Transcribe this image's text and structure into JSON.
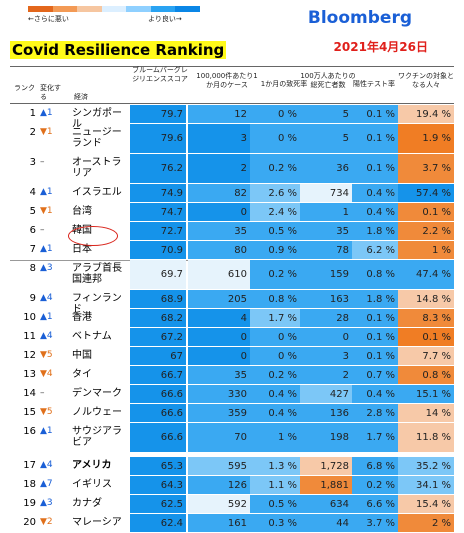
{
  "header": {
    "worse_label": "←さらに悪い",
    "better_label": "より良い→",
    "brand": "Bloomberg",
    "date": "2021年4月26日",
    "title": "Covid Resilience Ranking"
  },
  "columns": {
    "rank": "ランク",
    "change": "変化する",
    "economy": "経済",
    "score": "ブルームバーグレジリエンススコア",
    "cases": "100,000件あたり1か月のケース",
    "fatality": "1か月の致死率",
    "deaths": "100万人あたりの総死亡者数",
    "positive": "陽性テスト率",
    "vaccine": "ワクチンの対象となる人々"
  },
  "colors": {
    "legend": [
      "#e3671c",
      "#f39a55",
      "#f6c6a0",
      "#dcefff",
      "#8fd0ff",
      "#2aa3f2",
      "#0a86e6"
    ],
    "blue_strong": "#1593ea",
    "blue_mid": "#3aa9f2",
    "blue_light": "#7cc7f7",
    "pale": "#e6f3fc",
    "peach": "#f7c9a8",
    "orange": "#f08a3a",
    "orange_strong": "#f07d24"
  },
  "rows": [
    {
      "rank": "1",
      "dir": "up",
      "change": "▲1",
      "name": "シンガポール",
      "score": "79.7",
      "cases": "12",
      "fatality": "0 %",
      "deaths": "5",
      "positive": "0.1 %",
      "vaccine": "19.4 %"
    },
    {
      "rank": "2",
      "dir": "down",
      "change": "▼1",
      "name": "ニュージーランド",
      "score": "79.6",
      "cases": "3",
      "fatality": "0 %",
      "deaths": "5",
      "positive": "0.1 %",
      "vaccine": "1.9 %"
    },
    {
      "rank": "3",
      "dir": "flat",
      "change": "–",
      "name": "オーストラリア",
      "score": "76.2",
      "cases": "2",
      "fatality": "0.2 %",
      "deaths": "36",
      "positive": "0.1 %",
      "vaccine": "3.7 %"
    },
    {
      "rank": "4",
      "dir": "up",
      "change": "▲1",
      "name": "イスラエル",
      "score": "74.9",
      "cases": "82",
      "fatality": "2.6 %",
      "deaths": "734",
      "positive": "0.4 %",
      "vaccine": "57.4 %"
    },
    {
      "rank": "5",
      "dir": "down",
      "change": "▼1",
      "name": "台湾",
      "score": "74.7",
      "cases": "0",
      "fatality": "2.4 %",
      "deaths": "1",
      "positive": "0.4 %",
      "vaccine": "0.1 %"
    },
    {
      "rank": "6",
      "dir": "flat",
      "change": "–",
      "name": "韓国",
      "score": "72.7",
      "cases": "35",
      "fatality": "0.5 %",
      "deaths": "35",
      "positive": "1.8 %",
      "vaccine": "2.2 %"
    },
    {
      "rank": "7",
      "dir": "up",
      "change": "▲1",
      "name": "日本",
      "score": "70.9",
      "cases": "80",
      "fatality": "0.9 %",
      "deaths": "78",
      "positive": "6.2 %",
      "vaccine": "1 %"
    },
    {
      "rank": "8",
      "dir": "up",
      "change": "▲3",
      "name": "アラブ首長国連邦",
      "score": "69.7",
      "cases": "610",
      "fatality": "0.2 %",
      "deaths": "159",
      "positive": "0.8 %",
      "vaccine": "47.4 %"
    },
    {
      "rank": "9",
      "dir": "up",
      "change": "▲4",
      "name": "フィンランド",
      "score": "68.9",
      "cases": "205",
      "fatality": "0.8 %",
      "deaths": "163",
      "positive": "1.8 %",
      "vaccine": "14.8 %"
    },
    {
      "rank": "10",
      "dir": "up",
      "change": "▲1",
      "name": "香港",
      "score": "68.2",
      "cases": "4",
      "fatality": "1.7 %",
      "deaths": "28",
      "positive": "0.1 %",
      "vaccine": "8.3 %"
    },
    {
      "rank": "11",
      "dir": "up",
      "change": "▲4",
      "name": "ベトナム",
      "score": "67.2",
      "cases": "0",
      "fatality": "0 %",
      "deaths": "0",
      "positive": "0.1 %",
      "vaccine": "0.1 %"
    },
    {
      "rank": "12",
      "dir": "down",
      "change": "▼5",
      "name": "中国",
      "score": "67",
      "cases": "0",
      "fatality": "0 %",
      "deaths": "3",
      "positive": "0.1 %",
      "vaccine": "7.7 %"
    },
    {
      "rank": "13",
      "dir": "down",
      "change": "▼4",
      "name": "タイ",
      "score": "66.7",
      "cases": "35",
      "fatality": "0.2 %",
      "deaths": "2",
      "positive": "0.7 %",
      "vaccine": "0.8 %"
    },
    {
      "rank": "14",
      "dir": "flat",
      "change": "–",
      "name": "デンマーク",
      "score": "66.6",
      "cases": "330",
      "fatality": "0.4 %",
      "deaths": "427",
      "positive": "0.4 %",
      "vaccine": "15.1 %"
    },
    {
      "rank": "15",
      "dir": "down",
      "change": "▼5",
      "name": "ノルウェー",
      "score": "66.6",
      "cases": "359",
      "fatality": "0.4 %",
      "deaths": "136",
      "positive": "2.8 %",
      "vaccine": "14 %"
    },
    {
      "rank": "16",
      "dir": "up",
      "change": "▲1",
      "name": "サウジアラビア",
      "score": "66.6",
      "cases": "70",
      "fatality": "1 %",
      "deaths": "198",
      "positive": "1.7 %",
      "vaccine": "11.8 %"
    },
    {
      "rank": "17",
      "dir": "up",
      "change": "▲4",
      "name": "アメリカ",
      "score": "65.3",
      "cases": "595",
      "fatality": "1.3 %",
      "deaths": "1,728",
      "positive": "6.8 %",
      "vaccine": "35.2 %"
    },
    {
      "rank": "18",
      "dir": "up",
      "change": "▲7",
      "name": "イギリス",
      "score": "64.3",
      "cases": "126",
      "fatality": "1.1 %",
      "deaths": "1,881",
      "positive": "0.2 %",
      "vaccine": "34.1 %"
    },
    {
      "rank": "19",
      "dir": "up",
      "change": "▲3",
      "name": "カナダ",
      "score": "62.5",
      "cases": "592",
      "fatality": "0.5 %",
      "deaths": "634",
      "positive": "6.6 %",
      "vaccine": "15.4 %"
    },
    {
      "rank": "20",
      "dir": "down",
      "change": "▼2",
      "name": "マレーシア",
      "score": "62.4",
      "cases": "161",
      "fatality": "0.3 %",
      "deaths": "44",
      "positive": "3.7 %",
      "vaccine": "2 %"
    }
  ]
}
